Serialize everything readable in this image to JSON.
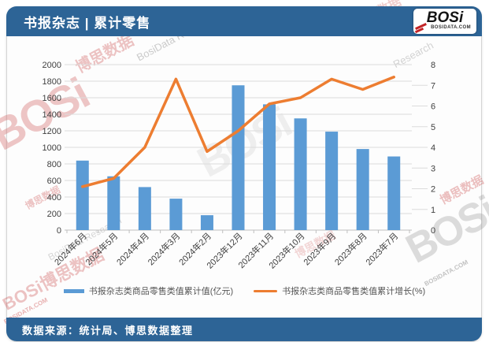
{
  "header": {
    "title": "书报杂志 | 累计零售",
    "logo": {
      "brand": "BOSi",
      "domain": "BOSIDATA.COM"
    }
  },
  "footer": {
    "source": "数据来源：统计局、博思数据整理"
  },
  "colors": {
    "bar": "#5b9bd5",
    "line": "#ed7d31",
    "banner": "#2d6496",
    "grid": "#dcdcdc",
    "axis_text": "#404040"
  },
  "watermarks": {
    "items": [
      "博思数据",
      "BosiData Research",
      "BOSi",
      "BOSi",
      "博思数据",
      "BOSi",
      "博思数据",
      "BosiData Research",
      "博思数据",
      "BOSIDATA.COM",
      "BOSi博思数据",
      "BOSIDATA.COM",
      "Research",
      "博思数据"
    ]
  },
  "chart_data": {
    "type": "bar",
    "title": "书报杂志 | 累计零售",
    "categories": [
      "2024年6月",
      "2024年5月",
      "2024年4月",
      "2024年3月",
      "2024年2月",
      "2023年12月",
      "2023年11月",
      "2023年10月",
      "2023年9月",
      "2023年8月",
      "2023年7月"
    ],
    "series": [
      {
        "name": "书报杂志类商品零售类值累计值(亿元)",
        "type": "bar",
        "axis": "left",
        "color": "#5b9bd5",
        "values": [
          840,
          650,
          520,
          380,
          180,
          1750,
          1520,
          1350,
          1190,
          980,
          890
        ]
      },
      {
        "name": "书报杂志类商品零售类值累计增长(%)",
        "type": "line",
        "axis": "right",
        "color": "#ed7d31",
        "values": [
          2.1,
          2.5,
          4.0,
          7.3,
          3.8,
          4.8,
          6.1,
          6.4,
          7.3,
          6.8,
          7.4
        ]
      }
    ],
    "left_axis": {
      "min": 0,
      "max": 2000,
      "step": 200
    },
    "right_axis": {
      "min": 0,
      "max": 8,
      "step": 1
    },
    "grid": true,
    "legend_position": "bottom"
  }
}
